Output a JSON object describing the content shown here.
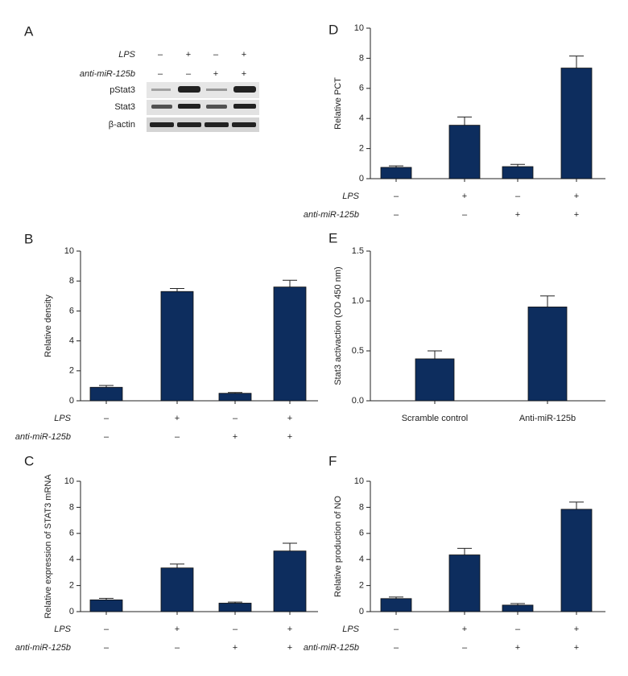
{
  "blot": {
    "panel": "A",
    "conditions": [
      {
        "name": "LPS",
        "signs": [
          "–",
          "+",
          "–",
          "+"
        ]
      },
      {
        "name": "anti-miR-125b",
        "signs": [
          "–",
          "–",
          "+",
          "+"
        ]
      }
    ],
    "rows": [
      "pStat3",
      "Stat3",
      "β-actin"
    ]
  },
  "chart_data": [
    {
      "type": "bar",
      "panel": "B",
      "ylabel": "Relative density",
      "conditions": [
        {
          "name": "LPS",
          "signs": [
            "–",
            "+",
            "–",
            "+"
          ]
        },
        {
          "name": "anti-miR-125b",
          "signs": [
            "–",
            "–",
            "+",
            "+"
          ]
        }
      ],
      "values": [
        0.9,
        7.3,
        0.5,
        7.6
      ],
      "errors": [
        0.12,
        0.2,
        0.05,
        0.45
      ],
      "color": "#0d2d5e",
      "ylim": [
        0,
        10
      ],
      "yticks": [
        0,
        2,
        4,
        6,
        8,
        10
      ]
    },
    {
      "type": "bar",
      "panel": "C",
      "ylabel": "Relative expression of STAT3 mRNA",
      "conditions": [
        {
          "name": "LPS",
          "signs": [
            "–",
            "+",
            "–",
            "+"
          ]
        },
        {
          "name": "anti-miR-125b",
          "signs": [
            "–",
            "–",
            "+",
            "+"
          ]
        }
      ],
      "values": [
        0.9,
        3.35,
        0.65,
        4.65
      ],
      "errors": [
        0.12,
        0.3,
        0.08,
        0.6
      ],
      "color": "#0d2d5e",
      "ylim": [
        0,
        10
      ],
      "yticks": [
        0,
        2,
        4,
        6,
        8,
        10
      ]
    },
    {
      "type": "bar",
      "panel": "D",
      "ylabel": "Relative PCT",
      "conditions": [
        {
          "name": "LPS",
          "signs": [
            "–",
            "+",
            "–",
            "+"
          ]
        },
        {
          "name": "anti-miR-125b",
          "signs": [
            "–",
            "–",
            "+",
            "+"
          ]
        }
      ],
      "values": [
        0.75,
        3.55,
        0.8,
        7.35
      ],
      "errors": [
        0.1,
        0.55,
        0.15,
        0.8
      ],
      "color": "#0d2d5e",
      "ylim": [
        0,
        10
      ],
      "yticks": [
        0,
        2,
        4,
        6,
        8,
        10
      ]
    },
    {
      "type": "bar",
      "panel": "E",
      "ylabel": "Stat3 activaction (OD 450 nm)",
      "categories": [
        "Scramble control",
        "Anti-miR-125b"
      ],
      "values": [
        0.42,
        0.94
      ],
      "errors": [
        0.08,
        0.11
      ],
      "color": "#0d2d5e",
      "ylim": [
        0,
        1.5
      ],
      "yticks": [
        {
          "value": 0,
          "label": "0.0"
        },
        {
          "value": 0.5,
          "label": "0.5"
        },
        {
          "value": 1,
          "label": "1.0"
        },
        {
          "value": 1.5,
          "label": "1.5"
        }
      ]
    },
    {
      "type": "bar",
      "panel": "F",
      "ylabel": "Relative production of NO",
      "conditions": [
        {
          "name": "LPS",
          "signs": [
            "–",
            "+",
            "–",
            "+"
          ]
        },
        {
          "name": "anti-miR-125b",
          "signs": [
            "–",
            "–",
            "+",
            "+"
          ]
        }
      ],
      "values": [
        1.0,
        4.35,
        0.5,
        7.85
      ],
      "errors": [
        0.12,
        0.5,
        0.12,
        0.55
      ],
      "color": "#0d2d5e",
      "ylim": [
        0,
        10
      ],
      "yticks": [
        0,
        2,
        4,
        6,
        8,
        10
      ]
    }
  ]
}
